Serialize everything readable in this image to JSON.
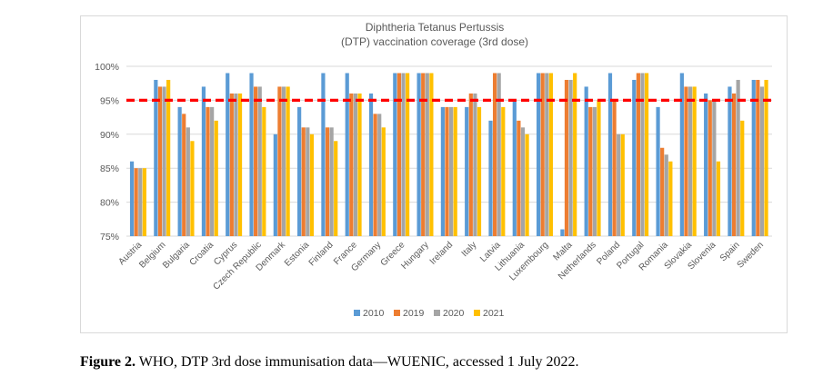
{
  "chart_data": {
    "type": "bar",
    "title": "Diphtheria Tetanus Pertussis",
    "subtitle": "(DTP) vaccination coverage (3rd dose)",
    "xlabel": "",
    "ylabel": "",
    "ylim": [
      75,
      100
    ],
    "yticks": [
      75,
      80,
      85,
      90,
      95,
      100
    ],
    "ytick_labels": [
      "75%",
      "80%",
      "85%",
      "90%",
      "95%",
      "100%"
    ],
    "categories": [
      "Austria",
      "Belgium",
      "Bulgaria",
      "Croatia",
      "Cyprus",
      "Czech Republic",
      "Denmark",
      "Estonia",
      "Finland",
      "France",
      "Germany",
      "Greece",
      "Hungary",
      "Ireland",
      "Italy",
      "Latvia",
      "Lithuania",
      "Luxembourg",
      "Malta",
      "Netherlands",
      "Poland",
      "Portugal",
      "Romania",
      "Slovakia",
      "Slovenia",
      "Spain",
      "Sweden"
    ],
    "series": [
      {
        "name": "2010",
        "color": "#5b9bd5",
        "values": [
          86,
          98,
          94,
          97,
          99,
          99,
          90,
          94,
          99,
          99,
          96,
          99,
          99,
          94,
          94,
          92,
          95,
          99,
          76,
          97,
          99,
          98,
          94,
          99,
          96,
          97,
          98
        ]
      },
      {
        "name": "2019",
        "color": "#ed7d31",
        "values": [
          85,
          97,
          93,
          94,
          96,
          97,
          97,
          91,
          91,
          96,
          93,
          99,
          99,
          94,
          96,
          99,
          92,
          99,
          98,
          94,
          95,
          99,
          88,
          97,
          95,
          96,
          98
        ]
      },
      {
        "name": "2020",
        "color": "#a5a5a5",
        "values": [
          85,
          97,
          91,
          94,
          96,
          97,
          97,
          91,
          91,
          96,
          93,
          99,
          99,
          94,
          96,
          99,
          91,
          99,
          98,
          94,
          90,
          99,
          87,
          97,
          95,
          98,
          97
        ]
      },
      {
        "name": "2021",
        "color": "#ffc000",
        "values": [
          85,
          98,
          89,
          92,
          96,
          94,
          97,
          90,
          89,
          96,
          91,
          99,
          99,
          94,
          94,
          94,
          90,
          99,
          99,
          95,
          90,
          99,
          86,
          97,
          86,
          92,
          98
        ]
      }
    ],
    "reference_line": {
      "value": 95,
      "color": "#ff0000",
      "style": "dashed"
    },
    "grid": true,
    "legend_position": "bottom"
  },
  "caption": {
    "label": "Figure 2.",
    "text": " WHO, DTP 3rd dose immunisation data—WUENIC, accessed 1 July 2022."
  }
}
